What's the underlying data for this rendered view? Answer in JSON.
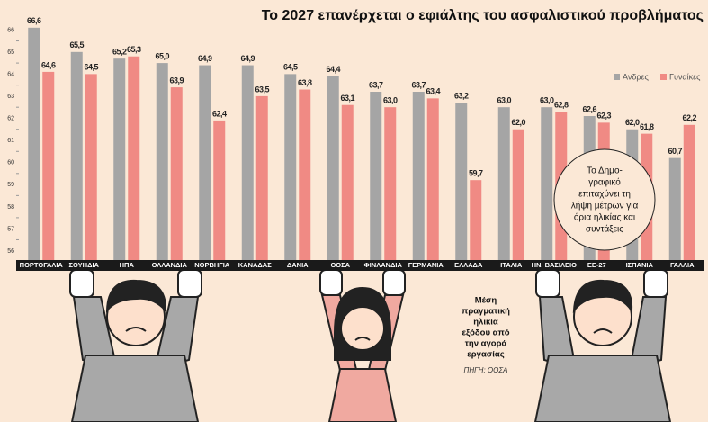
{
  "chart_data": {
    "type": "bar",
    "title": "Το 2027 επανέρχεται ο εφιάλτης του ασφαλιστικού προβλήματος",
    "categories": [
      "ΠΟΡΤΟΓΑΛΙΑ",
      "ΣΟΥΗΔΙΑ",
      "ΗΠΑ",
      "ΟΛΛΑΝΔΙΑ",
      "ΝΟΡΒΗΓΙΑ",
      "ΚΑΝΑΔΑΣ",
      "ΔΑΝΙΑ",
      "ΟΟΣΑ",
      "ΦΙΝΛΑΝΔΙΑ",
      "ΓΕΡΜΑΝΙΑ",
      "ΕΛΛΑΔΑ",
      "ΙΤΑΛΙΑ",
      "ΗΝ. ΒΑΣΙΛΕΙΟ",
      "ΕΕ-27",
      "ΙΣΠΑΝΙΑ",
      "ΓΑΛΛΙΑ"
    ],
    "series": [
      {
        "name": "Ανδρες",
        "color": "#a5a5a5",
        "values": [
          66.6,
          65.5,
          65.2,
          65.0,
          64.9,
          64.9,
          64.5,
          64.4,
          63.7,
          63.7,
          63.2,
          63.0,
          63.0,
          62.6,
          62.0,
          60.7
        ],
        "value_labels": [
          "66,6",
          "65,5",
          "65,2",
          "65,0",
          "64,9",
          "64,9",
          "64,5",
          "64,4",
          "63,7",
          "63,7",
          "63,2",
          "63,0",
          "63,0",
          "62,6",
          "62,0",
          "60,7"
        ]
      },
      {
        "name": "Γυναίκες",
        "color": "#f08a84",
        "values": [
          64.6,
          64.5,
          65.3,
          63.9,
          62.4,
          63.5,
          63.8,
          63.1,
          63.0,
          63.4,
          59.7,
          62.0,
          62.8,
          62.3,
          61.8,
          62.2
        ],
        "value_labels": [
          "64,6",
          "64,5",
          "65,3",
          "63,9",
          "62,4",
          "63,5",
          "63,8",
          "63,1",
          "63,0",
          "63,4",
          "59,7",
          "62,0",
          "62,8",
          "62,3",
          "61,8",
          "62,2"
        ]
      }
    ],
    "ylim": [
      56,
      67
    ],
    "yticks": [
      56,
      57,
      58,
      59,
      60,
      61,
      62,
      63,
      64,
      65,
      66
    ],
    "legend": "top-right",
    "callout": [
      "Το Δημο-",
      "γραφικό",
      "επιταχύνει τη",
      "λήψη μέτρων για",
      "όρια ηλικίας και",
      "συντάξεις"
    ],
    "note": [
      "Μέση",
      "πραγματική",
      "ηλικία",
      "εξόδου από",
      "την αγορά",
      "εργασίας"
    ],
    "source": "ΠΗΓΗ: ΟΟΣΑ"
  }
}
